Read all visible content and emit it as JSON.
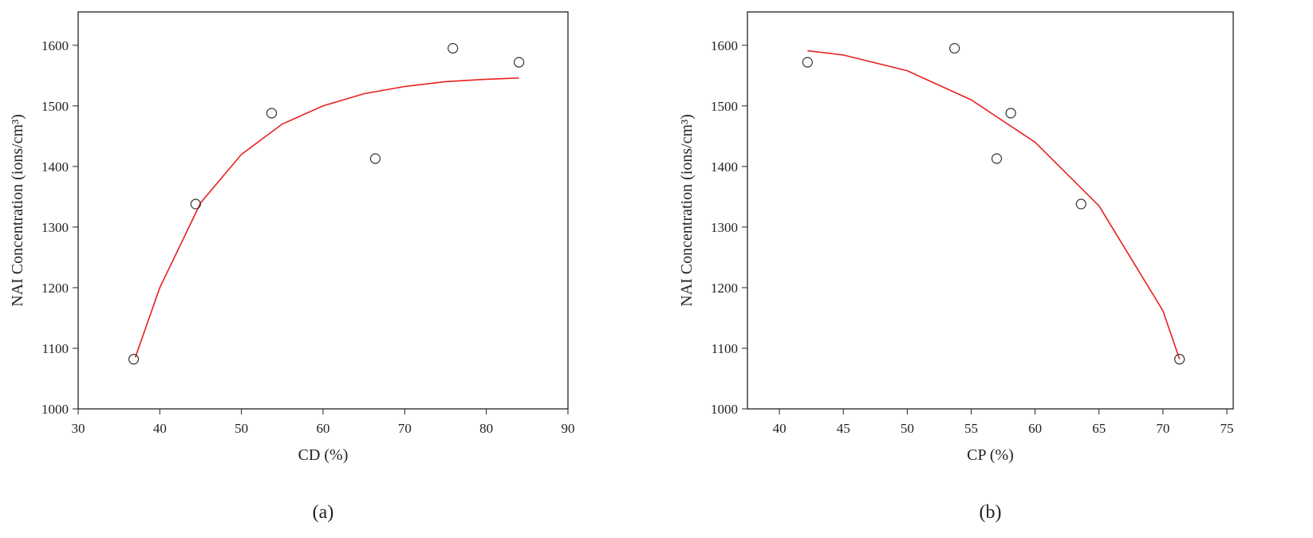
{
  "chart_data": [
    {
      "type": "scatter",
      "caption": "(a)",
      "xlabel": "CD (%)",
      "ylabel": "NAI Concentration (ions/cm³)",
      "xlim": [
        30,
        90
      ],
      "xticks": [
        30,
        40,
        50,
        60,
        70,
        80,
        90
      ],
      "ylim": [
        1000,
        1655
      ],
      "yticks": [
        1000,
        1100,
        1200,
        1300,
        1400,
        1500,
        1600
      ],
      "points": {
        "color": "#333333",
        "x": [
          36.8,
          44.4,
          53.7,
          66.4,
          75.9,
          84
        ],
        "y": [
          1082,
          1338,
          1488,
          1413,
          1595,
          1572
        ]
      },
      "fit": {
        "color": "#e8201f",
        "x": [
          37,
          40,
          45,
          50,
          55,
          60,
          65,
          70,
          75,
          80,
          84
        ],
        "y": [
          1085,
          1200,
          1340,
          1420,
          1470,
          1500,
          1520,
          1532,
          1540,
          1544,
          1546
        ]
      }
    },
    {
      "type": "scatter",
      "caption": "(b)",
      "xlabel": "CP (%)",
      "ylabel": "NAI Concentration (ions/cm³)",
      "xlim": [
        37.5,
        75.5
      ],
      "xticks": [
        40,
        45,
        50,
        55,
        60,
        65,
        70,
        75
      ],
      "ylim": [
        1000,
        1655
      ],
      "yticks": [
        1000,
        1100,
        1200,
        1300,
        1400,
        1500,
        1600
      ],
      "points": {
        "color": "#333333",
        "x": [
          42.2,
          53.7,
          57,
          58.1,
          63.6,
          71.3
        ],
        "y": [
          1572,
          1595,
          1413,
          1488,
          1338,
          1082
        ]
      },
      "fit": {
        "color": "#e8201f",
        "x": [
          42.2,
          45,
          50,
          55,
          60,
          65,
          70,
          71.3
        ],
        "y": [
          1591,
          1584,
          1558,
          1510,
          1440,
          1335,
          1162,
          1082
        ]
      }
    }
  ]
}
